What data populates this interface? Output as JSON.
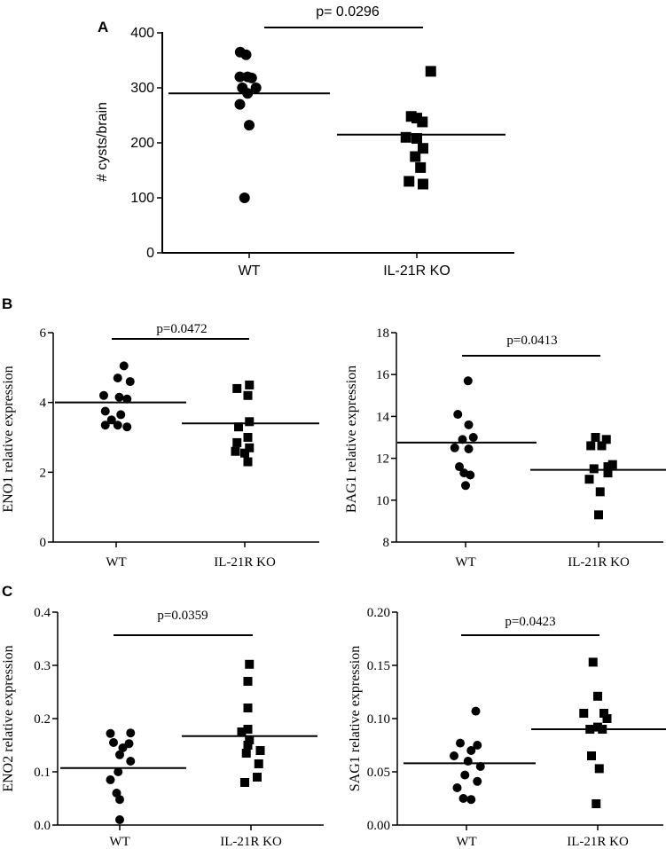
{
  "chart_data": [
    {
      "id": "A",
      "panel_label": "A",
      "type": "scatter",
      "ylabel": "# cysts/brain",
      "ylim": [
        0,
        400
      ],
      "yticks": [
        0,
        100,
        200,
        300,
        400
      ],
      "categories": [
        "WT",
        "IL-21R KO"
      ],
      "pvalue_label": "p= 0.0296",
      "series": [
        {
          "name": "WT",
          "marker": "circle",
          "median": 290,
          "points": [
            [
              -0.29,
              365
            ],
            [
              -0.1,
              360
            ],
            [
              -0.3,
              320
            ],
            [
              -0.05,
              320
            ],
            [
              0.08,
              318
            ],
            [
              -0.22,
              300
            ],
            [
              0.22,
              300
            ],
            [
              -0.05,
              290
            ],
            [
              -0.3,
              270
            ],
            [
              0,
              232
            ],
            [
              -0.15,
              100
            ]
          ]
        },
        {
          "name": "IL-21R KO",
          "marker": "square",
          "median": 215,
          "points": [
            [
              0.45,
              330
            ],
            [
              -0.18,
              248
            ],
            [
              0,
              245
            ],
            [
              0.18,
              238
            ],
            [
              -0.35,
              210
            ],
            [
              0,
              208
            ],
            [
              0.2,
              190
            ],
            [
              -0.05,
              175
            ],
            [
              0.12,
              155
            ],
            [
              -0.25,
              130
            ],
            [
              0.2,
              125
            ]
          ]
        }
      ]
    },
    {
      "id": "B_left",
      "panel_label": "B",
      "type": "scatter",
      "ylabel": "ENO1 relative expression",
      "ylim": [
        0,
        6
      ],
      "yticks": [
        0,
        2,
        4,
        6
      ],
      "categories": [
        "WT",
        "IL-21R KO"
      ],
      "pvalue_label": "p=0.0472",
      "series": [
        {
          "name": "WT",
          "marker": "circle",
          "median": 4.0,
          "points": [
            [
              0.25,
              5.05
            ],
            [
              0.05,
              4.7
            ],
            [
              0.45,
              4.6
            ],
            [
              -0.4,
              4.2
            ],
            [
              0.1,
              4.15
            ],
            [
              0.35,
              4.1
            ],
            [
              -0.35,
              3.75
            ],
            [
              0.15,
              3.65
            ],
            [
              -0.15,
              3.5
            ],
            [
              0.05,
              3.35
            ],
            [
              0.35,
              3.3
            ],
            [
              -0.35,
              3.35
            ]
          ]
        },
        {
          "name": "IL-21R KO",
          "marker": "square",
          "median": 3.4,
          "points": [
            [
              0.15,
              4.5
            ],
            [
              -0.25,
              4.4
            ],
            [
              0.1,
              4.2
            ],
            [
              0.15,
              3.45
            ],
            [
              -0.2,
              3.3
            ],
            [
              0.1,
              3.0
            ],
            [
              -0.25,
              2.85
            ],
            [
              0.15,
              2.7
            ],
            [
              -0.3,
              2.6
            ],
            [
              0,
              2.55
            ],
            [
              0.1,
              2.3
            ]
          ]
        }
      ]
    },
    {
      "id": "B_right",
      "panel_label": "",
      "type": "scatter",
      "ylabel": "BAG1 relative expression",
      "ylim": [
        8,
        18
      ],
      "yticks": [
        8,
        10,
        12,
        14,
        16,
        18
      ],
      "categories": [
        "WT",
        "IL-21R KO"
      ],
      "pvalue_label": "p=0.0413",
      "series": [
        {
          "name": "WT",
          "marker": "circle",
          "median": 12.75,
          "points": [
            [
              0.08,
              15.7
            ],
            [
              -0.25,
              14.1
            ],
            [
              0.1,
              13.6
            ],
            [
              -0.1,
              12.9
            ],
            [
              0.25,
              13.0
            ],
            [
              -0.35,
              12.5
            ],
            [
              0.1,
              12.45
            ],
            [
              -0.2,
              11.6
            ],
            [
              -0.05,
              11.3
            ],
            [
              0.15,
              11.2
            ],
            [
              0,
              10.7
            ]
          ]
        },
        {
          "name": "IL-21R KO",
          "marker": "square",
          "median": 11.45,
          "points": [
            [
              -0.1,
              13.0
            ],
            [
              0.25,
              12.9
            ],
            [
              0.1,
              12.6
            ],
            [
              -0.25,
              12.6
            ],
            [
              0.3,
              11.6
            ],
            [
              0.45,
              11.7
            ],
            [
              0.3,
              11.3
            ],
            [
              -0.15,
              11.5
            ],
            [
              -0.3,
              11.0
            ],
            [
              0.05,
              10.4
            ],
            [
              0,
              9.3
            ]
          ]
        }
      ]
    },
    {
      "id": "C_left",
      "panel_label": "C",
      "type": "scatter",
      "ylabel": "ENO2 relative expression",
      "ylim": [
        0,
        0.4
      ],
      "yticks": [
        "0.0",
        "0.1",
        "0.2",
        "0.3",
        "0.4"
      ],
      "categories": [
        "WT",
        "IL-21R KO"
      ],
      "pvalue_label": "p=0.0359",
      "series": [
        {
          "name": "WT",
          "marker": "circle",
          "median": 0.107,
          "points": [
            [
              -0.3,
              0.172
            ],
            [
              0.35,
              0.173
            ],
            [
              -0.2,
              0.155
            ],
            [
              0.3,
              0.153
            ],
            [
              0.1,
              0.145
            ],
            [
              0,
              0.132
            ],
            [
              0.35,
              0.12
            ],
            [
              -0.05,
              0.1
            ],
            [
              -0.3,
              0.085
            ],
            [
              -0.1,
              0.06
            ],
            [
              0,
              0.048
            ],
            [
              0,
              0.01
            ]
          ]
        },
        {
          "name": "IL-21R KO",
          "marker": "square",
          "median": 0.167,
          "points": [
            [
              -0.05,
              0.302
            ],
            [
              -0.1,
              0.27
            ],
            [
              -0.1,
              0.22
            ],
            [
              -0.1,
              0.18
            ],
            [
              -0.3,
              0.175
            ],
            [
              -0.05,
              0.16
            ],
            [
              -0.1,
              0.15
            ],
            [
              0.3,
              0.14
            ],
            [
              -0.15,
              0.135
            ],
            [
              0.25,
              0.115
            ],
            [
              -0.2,
              0.08
            ],
            [
              0.2,
              0.09
            ]
          ]
        }
      ]
    },
    {
      "id": "C_right",
      "panel_label": "",
      "type": "scatter",
      "ylabel": "SAG1 relative expression",
      "ylim": [
        0,
        0.2
      ],
      "yticks": [
        "0.00",
        "0.05",
        "0.10",
        "0.15",
        "0.20"
      ],
      "categories": [
        "WT",
        "IL-21R KO"
      ],
      "pvalue_label": "p=0.0423",
      "series": [
        {
          "name": "WT",
          "marker": "circle",
          "median": 0.058,
          "points": [
            [
              0.3,
              0.107
            ],
            [
              -0.2,
              0.077
            ],
            [
              0.35,
              0.075
            ],
            [
              0.15,
              0.07
            ],
            [
              -0.4,
              0.065
            ],
            [
              0.05,
              0.06
            ],
            [
              0.45,
              0.055
            ],
            [
              -0.05,
              0.047
            ],
            [
              0.35,
              0.041
            ],
            [
              -0.3,
              0.035
            ],
            [
              -0.1,
              0.025
            ],
            [
              0.15,
              0.024
            ]
          ]
        },
        {
          "name": "IL-21R KO",
          "marker": "square",
          "median": 0.09,
          "points": [
            [
              -0.15,
              0.153
            ],
            [
              0,
              0.121
            ],
            [
              -0.45,
              0.105
            ],
            [
              0.3,
              0.1
            ],
            [
              0.2,
              0.105
            ],
            [
              0,
              0.092
            ],
            [
              -0.25,
              0.09
            ],
            [
              0.15,
              0.09
            ],
            [
              -0.2,
              0.065
            ],
            [
              0.05,
              0.053
            ],
            [
              -0.05,
              0.02
            ]
          ]
        }
      ]
    }
  ]
}
